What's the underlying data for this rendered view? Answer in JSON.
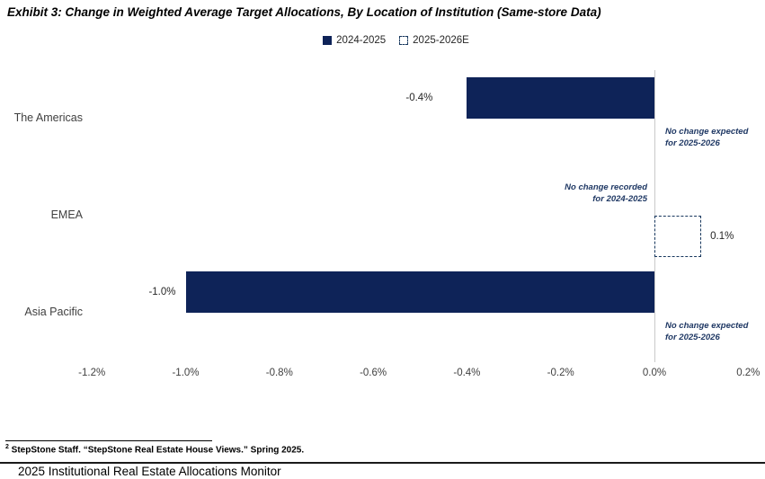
{
  "header": {
    "title": "Exhibit 3: Change in Weighted Average Target Allocations, By Location of Institution (Same-store Data)"
  },
  "legend": {
    "items": [
      {
        "label": "2024-2025",
        "style": "filled"
      },
      {
        "label": "2025-2026E",
        "style": "dashed"
      }
    ]
  },
  "colors": {
    "bar_navy": "#0E2358",
    "dashed_border_navy": "#17375D",
    "annotation_navy": "#1F3864",
    "zero_line_gray": "#C9C9C9"
  },
  "chart_data": {
    "type": "bar",
    "orientation": "horizontal",
    "title": "Exhibit 3: Change in Weighted Average Target Allocations, By Location of Institution (Same-store Data)",
    "categories": [
      "The Americas",
      "EMEA",
      "Asia Pacific"
    ],
    "series": [
      {
        "name": "2024-2025",
        "style": "filled",
        "values": [
          -0.4,
          null,
          -1.0
        ],
        "labels": [
          "-0.4%",
          null,
          "-1.0%"
        ]
      },
      {
        "name": "2025-2026E",
        "style": "dashed",
        "values": [
          null,
          0.1,
          null
        ],
        "labels": [
          null,
          "0.1%",
          null
        ]
      }
    ],
    "x_axis": {
      "tick_values": [
        -1.2,
        -1.0,
        -0.8,
        -0.6,
        -0.4,
        -0.2,
        0.0,
        0.2
      ],
      "tick_labels": [
        "-1.2%",
        "-1.0%",
        "-0.8%",
        "-0.6%",
        "-0.4%",
        "-0.2%",
        "0.0%",
        "0.2%"
      ],
      "xlim": [
        -1.2,
        0.2
      ],
      "unit": "percent"
    },
    "grid": "off",
    "legend_position": "top-center",
    "annotations": [
      {
        "category": "The Americas",
        "series": "2025-2026E",
        "side": "right",
        "text_lines": [
          "No change expected",
          "for 2025-2026"
        ]
      },
      {
        "category": "EMEA",
        "series": "2024-2025",
        "side": "left",
        "text_lines": [
          "No change recorded",
          "for 2024-2025"
        ]
      },
      {
        "category": "Asia Pacific",
        "series": "2025-2026E",
        "side": "right",
        "text_lines": [
          "No change expected",
          "for 2025-2026"
        ]
      }
    ]
  },
  "footer": {
    "footnote_sup": "2",
    "footnote_text": " StepStone Staff. “StepStone Real Estate House Views.” Spring 2025.",
    "monitor": "2025 Institutional Real Estate Allocations Monitor"
  }
}
